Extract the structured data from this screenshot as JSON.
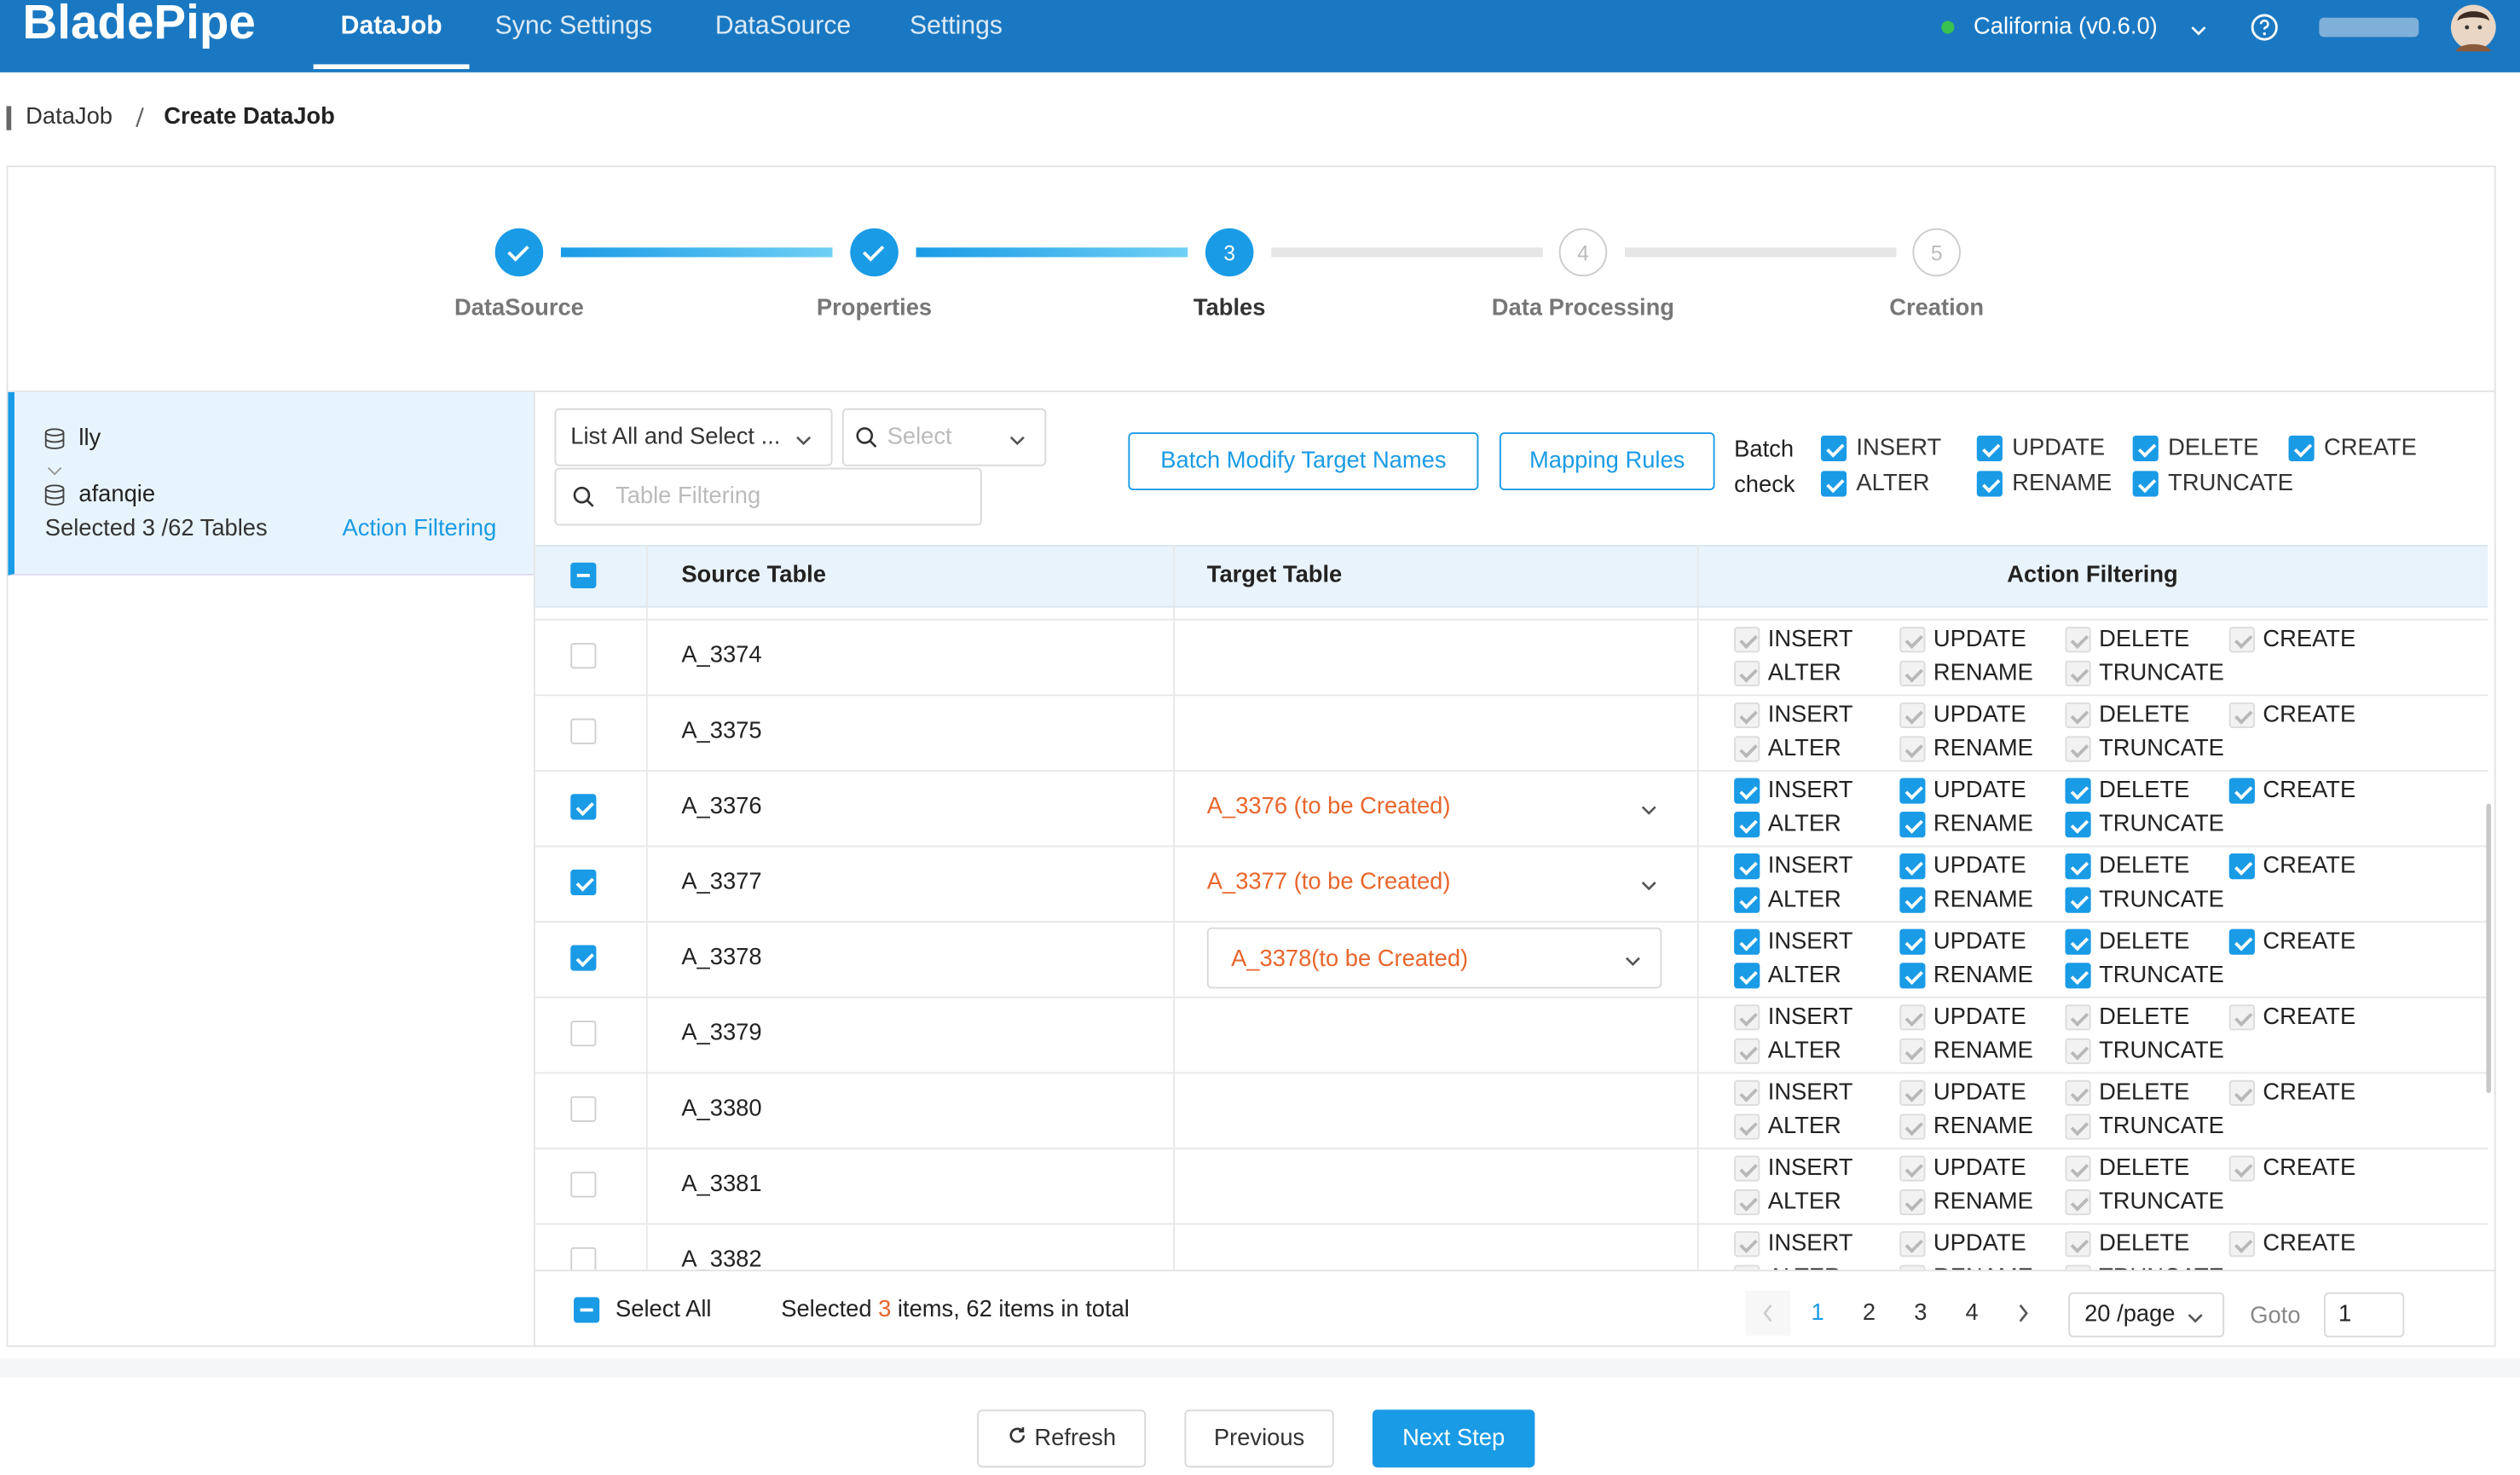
{
  "header": {
    "logo": "BladePipe",
    "nav": [
      "DataJob",
      "Sync Settings",
      "DataSource",
      "Settings"
    ],
    "active_nav": 0,
    "region": "California (v0.6.0)"
  },
  "breadcrumb": [
    "DataJob",
    "Create DataJob"
  ],
  "steps": [
    {
      "label": "DataSource",
      "status": "done"
    },
    {
      "label": "Properties",
      "status": "done"
    },
    {
      "label": "Tables",
      "number": 3,
      "status": "current"
    },
    {
      "label": "Data Processing",
      "number": 4,
      "status": "pending"
    },
    {
      "label": "Creation",
      "number": 5,
      "status": "pending"
    }
  ],
  "sidebar": {
    "source": "lly",
    "target": "afanqie",
    "selected_text": "Selected 3 /62 Tables",
    "action_filtering": "Action Filtering"
  },
  "toolbar": {
    "mode": "List All and Select ...",
    "select_placeholder": "Select",
    "filter_placeholder": "Table Filtering",
    "batch_modify": "Batch Modify Target Names",
    "mapping_rules": "Mapping Rules",
    "batch_check": "Batch check"
  },
  "actions": [
    "INSERT",
    "UPDATE",
    "DELETE",
    "CREATE",
    "ALTER",
    "RENAME",
    "TRUNCATE"
  ],
  "table": {
    "columns": [
      "Source Table",
      "Target Table",
      "Action Filtering"
    ],
    "rows": [
      {
        "source": "A_3374",
        "target": null,
        "selected": false
      },
      {
        "source": "A_3375",
        "target": null,
        "selected": false
      },
      {
        "source": "A_3376",
        "target": "A_3376 (to be Created)",
        "selected": true
      },
      {
        "source": "A_3377",
        "target": "A_3377 (to be Created)",
        "selected": true
      },
      {
        "source": "A_3378",
        "target": "A_3378(to be Created)",
        "selected": true,
        "editing": true
      },
      {
        "source": "A_3379",
        "target": null,
        "selected": false
      },
      {
        "source": "A_3380",
        "target": null,
        "selected": false
      },
      {
        "source": "A_3381",
        "target": null,
        "selected": false
      },
      {
        "source": "A_3382",
        "target": null,
        "selected": false
      }
    ]
  },
  "footer": {
    "select_all": "Select All",
    "selected_prefix": "Selected",
    "selected_count": 3,
    "selected_suffix": "items, 62 items in total",
    "pages": [
      1,
      2,
      3,
      4
    ],
    "current_page": 1,
    "page_size": "20 /page",
    "goto": "Goto",
    "goto_value": 1
  },
  "buttons": {
    "refresh": "Refresh",
    "previous": "Previous",
    "next": "Next Step"
  }
}
